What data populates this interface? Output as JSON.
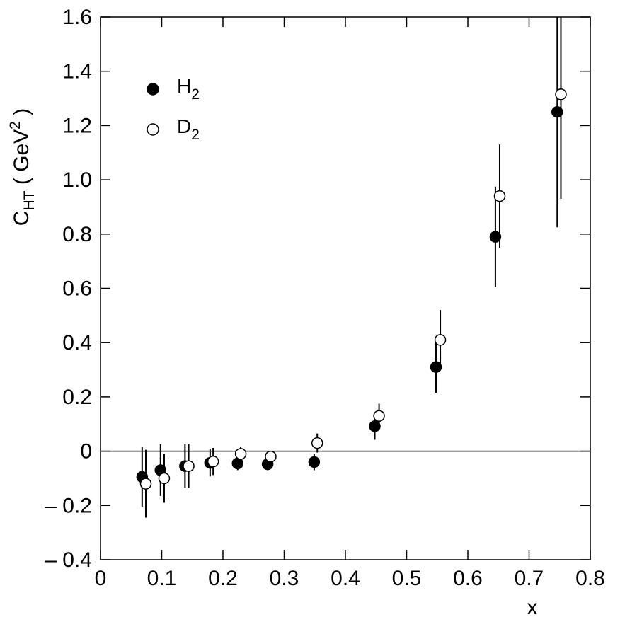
{
  "chart_data": {
    "type": "scatter",
    "xlim": [
      0,
      0.8
    ],
    "ylim": [
      -0.4,
      1.6
    ],
    "x_ticks": [
      0,
      0.1,
      0.2,
      0.3,
      0.4,
      0.5,
      0.6,
      0.7,
      0.8
    ],
    "x_tick_labels": [
      "0",
      "0.1",
      "0.2",
      "0.3",
      "0.4",
      "0.5",
      "0.6",
      "0.7",
      "0.8"
    ],
    "y_ticks": [
      -0.4,
      -0.2,
      0,
      0.2,
      0.4,
      0.6,
      0.8,
      1.0,
      1.2,
      1.4,
      1.6
    ],
    "y_tick_labels": [
      "– 0.4",
      "– 0.2",
      "0",
      "0.2",
      "0.4",
      "0.6",
      "0.8",
      "1.0",
      "1.2",
      "1.4",
      "1.6"
    ],
    "xlabel": "x",
    "ylabel": {
      "main": "C",
      "sub": "HT",
      "rest": " ( GeV",
      "sup": "2",
      "end": " )"
    },
    "zero_line": true,
    "grid": false,
    "legend_position": "top-left",
    "series": [
      {
        "name_main": "H",
        "name_sub": "2",
        "marker": "filled-circle",
        "x": [
          0.068,
          0.098,
          0.138,
          0.179,
          0.224,
          0.273,
          0.349,
          0.448,
          0.548,
          0.645,
          0.746
        ],
        "y": [
          -0.095,
          -0.07,
          -0.055,
          -0.043,
          -0.045,
          -0.048,
          -0.04,
          0.092,
          0.31,
          0.79,
          1.25
        ],
        "yerr": [
          0.11,
          0.095,
          0.08,
          0.05,
          0.025,
          0.022,
          0.03,
          0.05,
          0.095,
          0.185,
          0.425
        ]
      },
      {
        "name_main": "D",
        "name_sub": "2",
        "marker": "open-circle",
        "x": [
          0.074,
          0.104,
          0.144,
          0.184,
          0.229,
          0.278,
          0.354,
          0.455,
          0.555,
          0.652,
          0.752
        ],
        "y": [
          -0.12,
          -0.1,
          -0.055,
          -0.038,
          -0.01,
          -0.02,
          0.03,
          0.13,
          0.41,
          0.94,
          1.315
        ],
        "yerr": [
          0.125,
          0.09,
          0.08,
          0.05,
          0.025,
          0.015,
          0.035,
          0.045,
          0.11,
          0.19,
          0.385
        ]
      }
    ]
  }
}
